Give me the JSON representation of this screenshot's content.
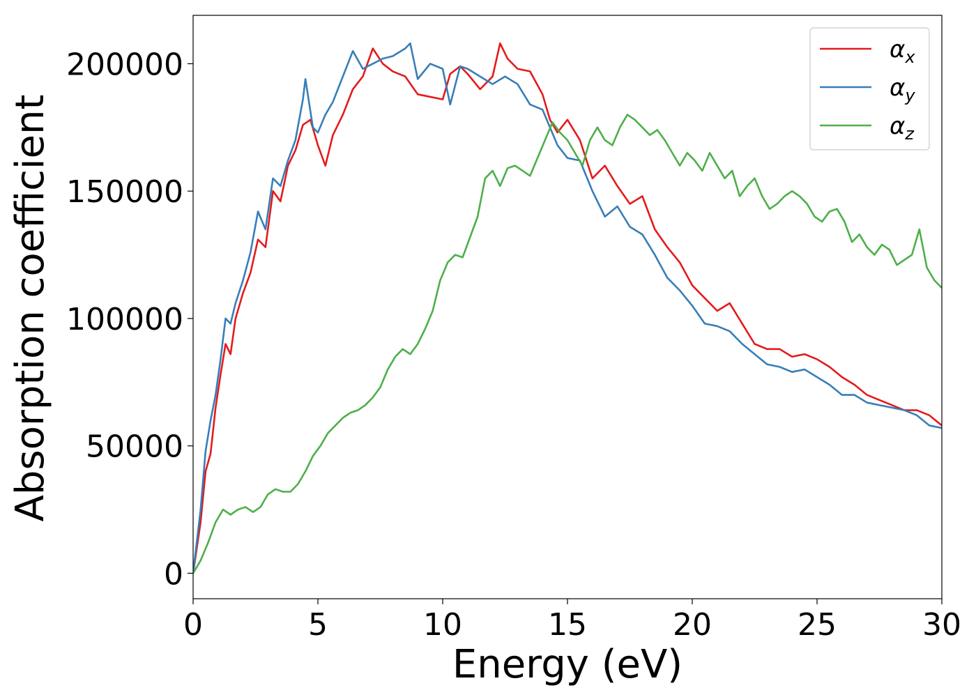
{
  "chart_data": {
    "type": "line",
    "title": "",
    "xlabel": "Energy (eV)",
    "ylabel": "Absorption coefficient",
    "xlim": [
      0,
      30
    ],
    "ylim": [
      -10000,
      219000
    ],
    "xticks": [
      0,
      5,
      10,
      15,
      20,
      25,
      30
    ],
    "xtick_labels": [
      "0",
      "5",
      "10",
      "15",
      "20",
      "25",
      "30"
    ],
    "yticks": [
      0,
      50000,
      100000,
      150000,
      200000
    ],
    "ytick_labels": [
      "0",
      "50000",
      "100000",
      "150000",
      "200000"
    ],
    "grid": false,
    "legend_position": "top-right",
    "series": [
      {
        "name": "αx",
        "legend_symbol": "α",
        "legend_subscript": "x",
        "color": "#e41a1c",
        "x": [
          0,
          0.3,
          0.5,
          0.7,
          0.9,
          1.1,
          1.3,
          1.5,
          1.7,
          2.0,
          2.3,
          2.6,
          2.9,
          3.2,
          3.5,
          3.8,
          4.1,
          4.4,
          4.7,
          5.0,
          5.3,
          5.6,
          6.0,
          6.4,
          6.8,
          7.2,
          7.6,
          8.0,
          8.5,
          9.0,
          9.5,
          10.0,
          10.3,
          10.7,
          11.0,
          11.5,
          12.0,
          12.3,
          12.6,
          13.0,
          13.5,
          14.0,
          14.3,
          14.6,
          15.0,
          15.5,
          16.0,
          16.5,
          17.0,
          17.5,
          18.0,
          18.5,
          19.0,
          19.5,
          20.0,
          20.5,
          21.0,
          21.5,
          22.0,
          22.5,
          23.0,
          23.5,
          24.0,
          24.5,
          25.0,
          25.5,
          26.0,
          26.5,
          27.0,
          27.5,
          28.0,
          28.5,
          29.0,
          29.5,
          30.0
        ],
        "values": [
          0,
          20000,
          40000,
          47000,
          65000,
          78000,
          90000,
          86000,
          100000,
          110000,
          118000,
          131000,
          128000,
          150000,
          146000,
          160000,
          166000,
          176000,
          178000,
          168000,
          160000,
          172000,
          180000,
          190000,
          195000,
          206000,
          200000,
          197000,
          195000,
          188000,
          187000,
          186000,
          196000,
          199000,
          196000,
          190000,
          195000,
          208000,
          202000,
          198000,
          197000,
          188000,
          178000,
          173000,
          178000,
          170000,
          155000,
          160000,
          152000,
          145000,
          148000,
          135000,
          128000,
          122000,
          113000,
          108000,
          103000,
          106000,
          98000,
          90000,
          88000,
          88000,
          85000,
          86000,
          84000,
          81000,
          77000,
          74000,
          70000,
          68000,
          66000,
          64000,
          64000,
          62000,
          58000
        ]
      },
      {
        "name": "αy",
        "legend_symbol": "α",
        "legend_subscript": "y",
        "color": "#377eb8",
        "x": [
          0,
          0.3,
          0.5,
          0.7,
          0.9,
          1.1,
          1.3,
          1.5,
          1.7,
          2.0,
          2.3,
          2.6,
          2.9,
          3.2,
          3.5,
          3.8,
          4.1,
          4.4,
          4.5,
          4.8,
          5.0,
          5.3,
          5.6,
          6.0,
          6.4,
          6.8,
          7.2,
          7.6,
          8.0,
          8.5,
          8.7,
          9.0,
          9.5,
          10.0,
          10.3,
          10.7,
          11.0,
          11.5,
          12.0,
          12.5,
          13.0,
          13.5,
          14.0,
          14.3,
          14.6,
          15.0,
          15.5,
          16.0,
          16.5,
          17.0,
          17.5,
          18.0,
          18.5,
          19.0,
          19.5,
          20.0,
          20.5,
          21.0,
          21.5,
          22.0,
          22.5,
          23.0,
          23.5,
          24.0,
          24.5,
          25.0,
          25.5,
          26.0,
          26.5,
          27.0,
          27.5,
          28.0,
          28.5,
          29.0,
          29.5,
          30.0
        ],
        "values": [
          0,
          25000,
          48000,
          60000,
          70000,
          84000,
          100000,
          98000,
          106000,
          115000,
          126000,
          142000,
          135000,
          155000,
          152000,
          162000,
          170000,
          186000,
          194000,
          175000,
          173000,
          180000,
          185000,
          195000,
          205000,
          198000,
          200000,
          202000,
          203000,
          206000,
          208000,
          194000,
          200000,
          198000,
          184000,
          199000,
          198000,
          195000,
          192000,
          195000,
          192000,
          184000,
          182000,
          175000,
          168000,
          163000,
          162000,
          150000,
          140000,
          144000,
          136000,
          133000,
          125000,
          116000,
          111000,
          105000,
          98000,
          97000,
          95000,
          90000,
          86000,
          82000,
          81000,
          79000,
          80000,
          77000,
          74000,
          70000,
          70000,
          67000,
          66000,
          65000,
          64000,
          62000,
          58000,
          57000
        ]
      },
      {
        "name": "αz",
        "legend_symbol": "α",
        "legend_subscript": "z",
        "color": "#4daf4a",
        "x": [
          0,
          0.3,
          0.6,
          0.9,
          1.2,
          1.5,
          1.8,
          2.1,
          2.4,
          2.7,
          3.0,
          3.3,
          3.6,
          3.9,
          4.2,
          4.5,
          4.8,
          5.1,
          5.4,
          5.7,
          6.0,
          6.3,
          6.6,
          6.9,
          7.2,
          7.5,
          7.8,
          8.1,
          8.4,
          8.7,
          9.0,
          9.3,
          9.6,
          9.9,
          10.2,
          10.5,
          10.8,
          11.1,
          11.4,
          11.7,
          12.0,
          12.3,
          12.6,
          12.9,
          13.2,
          13.5,
          13.8,
          14.1,
          14.4,
          14.7,
          15.0,
          15.3,
          15.6,
          15.9,
          16.2,
          16.5,
          16.8,
          17.1,
          17.4,
          17.7,
          18.0,
          18.3,
          18.6,
          18.9,
          19.2,
          19.5,
          19.8,
          20.1,
          20.4,
          20.7,
          21.0,
          21.3,
          21.6,
          21.9,
          22.2,
          22.5,
          22.8,
          23.1,
          23.4,
          23.7,
          24.0,
          24.3,
          24.6,
          24.9,
          25.2,
          25.5,
          25.8,
          26.1,
          26.4,
          26.7,
          27.0,
          27.3,
          27.6,
          27.9,
          28.2,
          28.5,
          28.8,
          29.1,
          29.4,
          29.7,
          30.0
        ],
        "values": [
          0,
          5000,
          12000,
          20000,
          25000,
          23000,
          25000,
          26000,
          24000,
          26000,
          31000,
          33000,
          32000,
          32000,
          35000,
          40000,
          46000,
          50000,
          55000,
          58000,
          61000,
          63000,
          64000,
          66000,
          69000,
          73000,
          80000,
          85000,
          88000,
          86000,
          90000,
          96000,
          103000,
          115000,
          122000,
          125000,
          124000,
          132000,
          140000,
          155000,
          158000,
          152000,
          159000,
          160000,
          158000,
          156000,
          163000,
          170000,
          177000,
          173000,
          170000,
          165000,
          160000,
          170000,
          175000,
          170000,
          168000,
          175000,
          180000,
          178000,
          175000,
          172000,
          174000,
          170000,
          165000,
          160000,
          165000,
          162000,
          158000,
          165000,
          160000,
          155000,
          158000,
          148000,
          152000,
          155000,
          148000,
          143000,
          145000,
          148000,
          150000,
          148000,
          145000,
          140000,
          138000,
          142000,
          143000,
          138000,
          130000,
          133000,
          128000,
          125000,
          129000,
          127000,
          121000,
          123000,
          125000,
          135000,
          120000,
          115000,
          112000
        ]
      }
    ]
  }
}
